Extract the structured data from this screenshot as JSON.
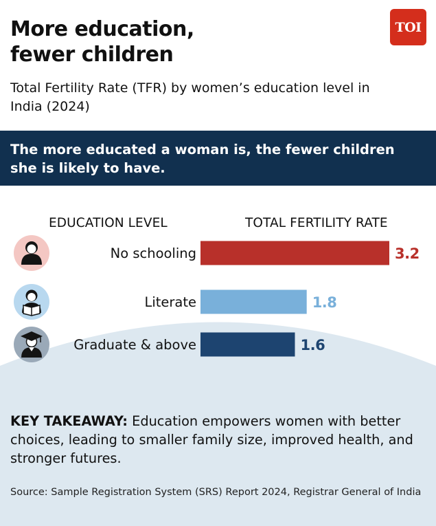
{
  "header": {
    "title": "More education,\nfewer children",
    "logo_text": "TOI",
    "subtitle": "Total Fertility Rate (TFR) by women’s education level in India (2024)"
  },
  "banner": {
    "text": "The more educated a woman is, the fewer children she is likely to have."
  },
  "columns": {
    "education_header": "EDUCATION LEVEL",
    "tfr_header": "TOTAL FERTILITY RATE"
  },
  "icons": [
    "woman-icon",
    "woman-reading-icon",
    "graduate-icon"
  ],
  "chart_data": {
    "type": "bar",
    "orientation": "horizontal",
    "categories": [
      "No schooling",
      "Literate",
      "Graduate & above"
    ],
    "values": [
      3.2,
      1.8,
      1.6
    ],
    "value_labels": [
      "3.2",
      "1.8",
      "1.6"
    ],
    "colors": [
      "#b8302a",
      "#79b0da",
      "#1d4470"
    ],
    "icon_bg_colors": [
      "#f4c7c3",
      "#b8d8ef",
      "#9aa9b8"
    ],
    "xlim": [
      0,
      3.2
    ],
    "grid": false,
    "legend": "none"
  },
  "takeaway": {
    "label": "KEY TAKEAWAY:",
    "text": " Education empowers women with better choices, leading to smaller family size, improved health, and stronger futures."
  },
  "source": {
    "text": "Source: Sample Registration System (SRS) Report 2024, Registrar General of India"
  }
}
